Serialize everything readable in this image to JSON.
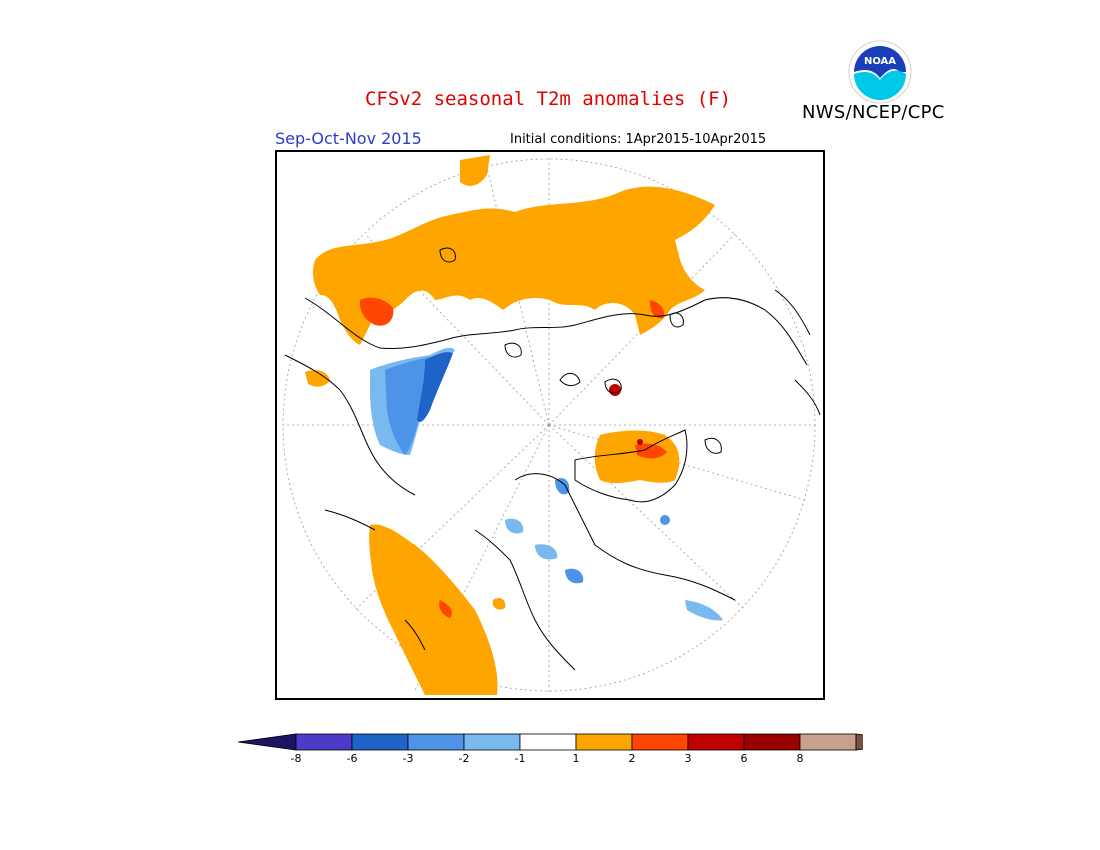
{
  "header": {
    "title": "CFSv2 seasonal T2m anomalies (F)",
    "agency": "NWS/NCEP/CPC",
    "logo_text": "NOAA",
    "season": "Sep-Oct-Nov 2015",
    "initial_conditions": "Initial conditions: 1Apr2015-10Apr2015"
  },
  "map": {
    "projection": "north-polar-stereographic",
    "colors": {
      "warm1": "#ffa500",
      "warm2": "#ff4500",
      "warm3": "#c00000",
      "cool1": "#7ab8f0",
      "cool2": "#4d94e8",
      "cool3": "#1e64c8"
    }
  },
  "legend": {
    "labels": [
      "-8",
      "-6",
      "-3",
      "-2",
      "-1",
      "1",
      "2",
      "3",
      "6",
      "8"
    ],
    "colors": [
      "#1e1464",
      "#4b3cc8",
      "#1e64c8",
      "#4d94e8",
      "#7ab8f0",
      "#ffffff",
      "#ffa500",
      "#ff4500",
      "#c00000",
      "#9b0000",
      "#c8a08c",
      "#7a5040"
    ]
  }
}
